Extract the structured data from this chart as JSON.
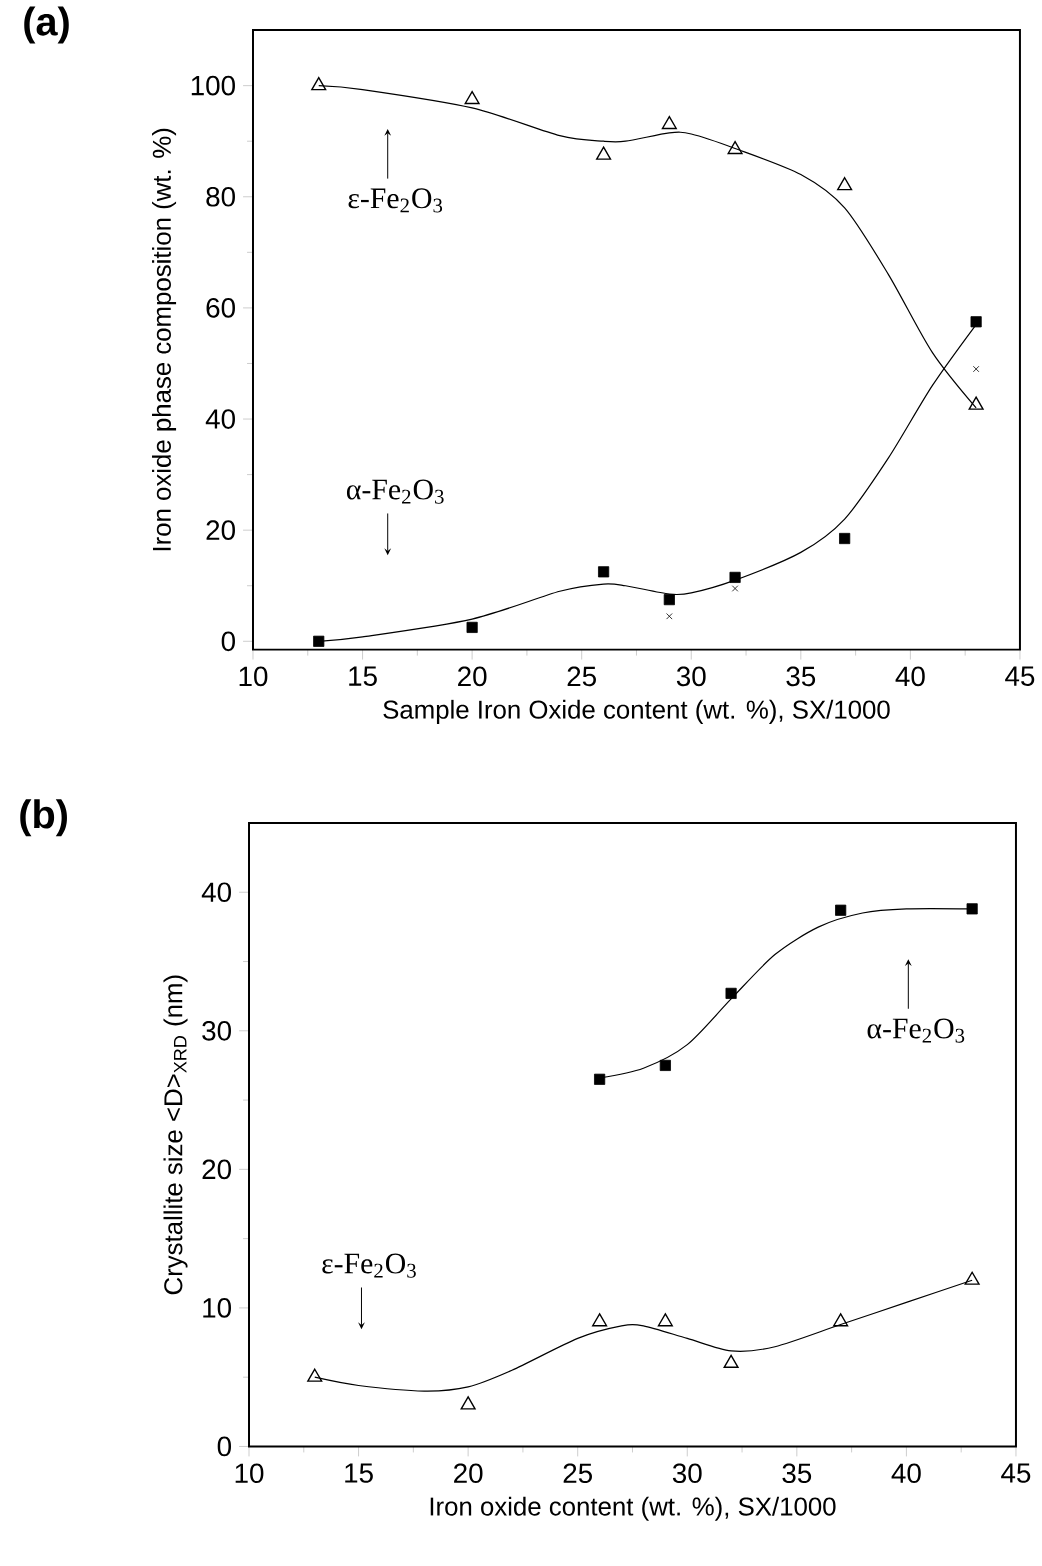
{
  "chart_data": [
    {
      "type": "scatter",
      "title": "(a)",
      "xlabel": "Sample Iron Oxide content (wt. %), SX/1000",
      "ylabel": "Iron oxide phase composition (wt. %)",
      "xlim": [
        10,
        45
      ],
      "ylim": [
        -1.5,
        110
      ],
      "xticks": [
        10,
        15,
        20,
        25,
        30,
        35,
        40,
        45
      ],
      "yticks": [
        0,
        20,
        40,
        60,
        80,
        100
      ],
      "grid": false,
      "annotations": [
        "ε-Fe$_{2}$O$_{3}$",
        "α-Fe$_{2}$O$_{3}$"
      ],
      "series": [
        {
          "marker": "triangle",
          "color": "#000000",
          "x": [
            13,
            20,
            26,
            29,
            32,
            37,
            43
          ],
          "values": [
            100,
            97.5,
            87.5,
            93,
            88.5,
            82,
            42.5
          ]
        },
        {
          "marker": "square",
          "color": "#000000",
          "x": [
            13,
            20,
            26,
            29,
            32,
            37,
            43
          ],
          "values": [
            0,
            2.5,
            12.5,
            7.5,
            11.5,
            18.5,
            57.5
          ]
        },
        {
          "marker": "cross",
          "color": "#000000",
          "x": [
            29,
            32,
            43
          ],
          "values": [
            4.5,
            9.5,
            49
          ]
        },
        {
          "type": "line",
          "marker": "none",
          "color": "#000000",
          "x": [
            13,
            15,
            20,
            24,
            26,
            27,
            29,
            30,
            32,
            35,
            37,
            39,
            41,
            43
          ],
          "values": [
            100,
            99.3,
            96,
            91,
            90,
            90,
            91.5,
            91.3,
            88.7,
            84,
            78,
            66,
            52,
            42
          ]
        },
        {
          "type": "line",
          "marker": "none",
          "color": "#000000",
          "x": [
            13,
            15,
            20,
            24,
            26,
            27,
            29,
            30,
            32,
            35,
            37,
            39,
            41,
            43
          ],
          "values": [
            0,
            0.8,
            4,
            9,
            10.3,
            10,
            8.5,
            8.7,
            11,
            16,
            22,
            33,
            46,
            57
          ]
        }
      ]
    },
    {
      "type": "scatter",
      "title": "(b)",
      "xlabel": "Iron oxide content (wt. %), SX/1000",
      "ylabel": "Crystallite size <D>$_{XRD}$ (nm)",
      "xlim": [
        10,
        45
      ],
      "ylim": [
        0,
        45
      ],
      "xticks": [
        10,
        15,
        20,
        25,
        30,
        35,
        40,
        45
      ],
      "yticks": [
        0,
        10,
        20,
        30,
        40
      ],
      "grid": false,
      "annotations": [
        "α-Fe$_{2}$O$_{3}$",
        "ε-Fe$_{2}$O$_{3}$"
      ],
      "series": [
        {
          "marker": "square",
          "color": "#000000",
          "x": [
            26,
            29,
            32,
            37,
            43
          ],
          "values": [
            26.5,
            27.5,
            32.7,
            38.7,
            38.8
          ]
        },
        {
          "marker": "triangle",
          "color": "#000000",
          "x": [
            13,
            20,
            26,
            29,
            32,
            37,
            43
          ],
          "values": [
            5,
            3,
            9,
            9,
            6,
            9,
            12
          ]
        },
        {
          "type": "line",
          "marker": "none",
          "color": "#000000",
          "x": [
            26,
            28,
            30,
            32,
            34,
            36,
            38,
            40,
            43
          ],
          "values": [
            26.6,
            27.3,
            29,
            32.3,
            35.5,
            37.5,
            38.5,
            38.8,
            38.8
          ]
        },
        {
          "type": "line",
          "marker": "none",
          "color": "#000000",
          "x": [
            13,
            15,
            18,
            20,
            22,
            25,
            27,
            28,
            30,
            32,
            34,
            37,
            40,
            43
          ],
          "values": [
            5,
            4.4,
            4,
            4.3,
            5.5,
            7.8,
            8.7,
            8.7,
            7.8,
            6.9,
            7.2,
            8.8,
            10.4,
            12
          ]
        }
      ]
    }
  ]
}
